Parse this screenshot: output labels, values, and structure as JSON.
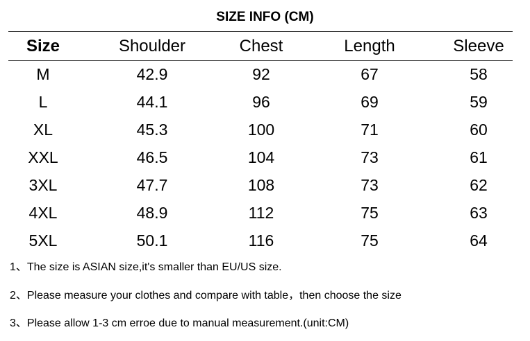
{
  "title": "SIZE INFO (CM)",
  "table": {
    "header": [
      "Size",
      "Shoulder",
      "Chest",
      "Length",
      "Sleeve"
    ],
    "rows": [
      [
        "M",
        "42.9",
        "92",
        "67",
        "58"
      ],
      [
        "L",
        "44.1",
        "96",
        "69",
        "59"
      ],
      [
        "XL",
        "45.3",
        "100",
        "71",
        "60"
      ],
      [
        "XXL",
        "46.5",
        "104",
        "73",
        "61"
      ],
      [
        "3XL",
        "47.7",
        "108",
        "73",
        "62"
      ],
      [
        "4XL",
        "48.9",
        "112",
        "75",
        "63"
      ],
      [
        "5XL",
        "50.1",
        "116",
        "75",
        "64"
      ]
    ]
  },
  "notes": [
    "1、The size is ASIAN size,it's smaller than EU/US size.",
    "2、Please measure your clothes and compare with table，then choose the size",
    "3、Please allow 1-3 cm erroe due to manual measurement.(unit:CM)"
  ]
}
